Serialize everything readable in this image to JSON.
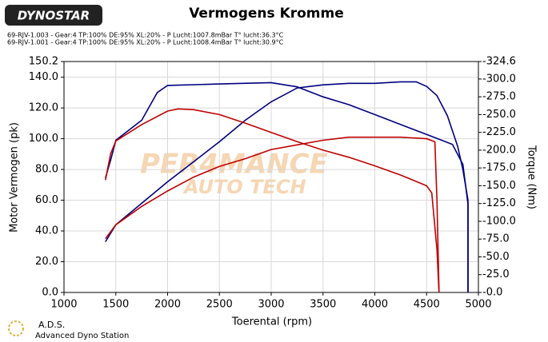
{
  "chart_data": {
    "type": "line",
    "logo": "DYNOSTAR",
    "title": "Vermogens Kromme",
    "legend": [
      {
        "name": "69-RJV-1.003 - Gear:4 TP:100% DE:95% XL:20%   - P Lucht:1007.8mBar T° lucht:36.3°C",
        "color": "#000080"
      },
      {
        "name": "69-RJV-1.001 - Gear:4 TP:100% DE:95% XL:20%   - P Lucht:1008.4mBar T° lucht:30.9°C",
        "color": "#c00000"
      }
    ],
    "x_label": "Toerental (rpm)",
    "y_label": "Motor Vermogen (pk)",
    "y2_label": "Torque (Nm)",
    "xlim": [
      1000,
      5000
    ],
    "xticks": [
      1000,
      1500,
      2000,
      2500,
      3000,
      3500,
      4000,
      4500,
      5000
    ],
    "ylim": [
      0,
      150.2
    ],
    "yticks": [
      {
        "value": 0,
        "label": "0.0"
      },
      {
        "value": 20,
        "label": "20.0"
      },
      {
        "value": 40,
        "label": "40.0"
      },
      {
        "value": 60,
        "label": "60.0"
      },
      {
        "value": 80,
        "label": "80.0"
      },
      {
        "value": 100,
        "label": "100.0"
      },
      {
        "value": 120,
        "label": "120.0"
      },
      {
        "value": 140,
        "label": "140.0"
      },
      {
        "value": 150.2,
        "label": "150.2"
      }
    ],
    "y2lim": [
      0,
      324.6
    ],
    "y2ticks": [
      {
        "value": 0,
        "label": "-0.0"
      },
      {
        "value": 25,
        "label": "-25.0"
      },
      {
        "value": 50,
        "label": "-50.0"
      },
      {
        "value": 75,
        "label": "-75.0"
      },
      {
        "value": 100,
        "label": "-100.0"
      },
      {
        "value": 125,
        "label": "-125.0"
      },
      {
        "value": 150,
        "label": "-150.0"
      },
      {
        "value": 175,
        "label": "-175.0"
      },
      {
        "value": 200,
        "label": "-200.0"
      },
      {
        "value": 225,
        "label": "-225.0"
      },
      {
        "value": 250,
        "label": "-250.0"
      },
      {
        "value": 275,
        "label": "-275.0"
      },
      {
        "value": 300,
        "label": "-300.0"
      },
      {
        "value": 324.6,
        "label": "-324.6"
      }
    ],
    "grid": true,
    "series": [
      {
        "color": "#000080",
        "x": [
          1400,
          1500,
          1750,
          2000,
          2250,
          2500,
          2750,
          3000,
          3250,
          3500,
          3750,
          4000,
          4250,
          4400,
          4500,
          4600,
          4700,
          4800,
          4850,
          4900,
          4900
        ],
        "values": [
          33,
          44,
          58,
          72,
          85,
          98,
          112,
          124,
          133,
          135,
          136,
          136,
          137,
          137,
          134,
          128,
          115,
          95,
          80,
          60,
          0
        ]
      },
      {
        "color": "#000080",
        "axis": "y2",
        "x": [
          1400,
          1450,
          1500,
          1750,
          1900,
          2000,
          2500,
          3000,
          3250,
          3500,
          3750,
          4000,
          4250,
          4500,
          4750,
          4850,
          4900,
          4900
        ],
        "values": [
          161,
          186,
          214,
          242,
          281,
          291,
          293,
          295,
          289,
          275,
          264,
          250,
          236,
          222,
          208,
          180,
          124,
          0
        ]
      },
      {
        "color": "#c00000",
        "x": [
          1400,
          1500,
          1750,
          2000,
          2250,
          2500,
          2750,
          3000,
          3250,
          3500,
          3750,
          4000,
          4250,
          4500,
          4580,
          4600,
          4620
        ],
        "values": [
          35,
          44,
          56,
          66,
          75,
          82,
          87,
          93,
          96,
          99,
          101,
          101,
          101,
          100,
          98,
          60,
          0
        ]
      },
      {
        "color": "#c00000",
        "axis": "y2",
        "x": [
          1400,
          1450,
          1500,
          1750,
          2000,
          2100,
          2250,
          2500,
          2750,
          3000,
          3250,
          3500,
          3750,
          4000,
          4250,
          4500,
          4550,
          4600,
          4620
        ],
        "values": [
          158,
          195,
          213,
          236,
          255,
          258,
          257,
          250,
          238,
          225,
          212,
          200,
          190,
          178,
          165,
          150,
          140,
          60,
          0
        ]
      }
    ],
    "watermark": [
      "PER4MANCE",
      "AUTO TECH"
    ],
    "footer": [
      "A.D.S.",
      "Advanced Dyno Station"
    ]
  }
}
